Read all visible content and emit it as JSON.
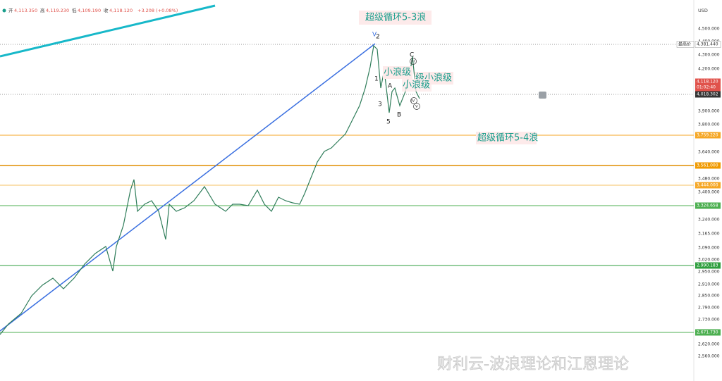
{
  "toolbar": {
    "open_label": "开",
    "open": "4,113.350",
    "high_label": "高",
    "high": "4,119.230",
    "low_label": "低",
    "low": "4,109.190",
    "close_label": "收",
    "close": "4,118.120",
    "change": "+3.208 (+0.08%)"
  },
  "currency": "USD",
  "price_axis": [
    "4,500.000",
    "4,400.000",
    "4,300.000",
    "4,200.000",
    "3,900.000",
    "3,800.000",
    "3,640.000",
    "3,480.000",
    "3,400.000",
    "3,240.000",
    "3,165.000",
    "3,090.000",
    "3,020.000",
    "2,950.000",
    "2,910.000",
    "2,850.000",
    "2,790.000",
    "2,730.000",
    "2,620.000",
    "2,560.000"
  ],
  "high_tag": "最高价",
  "badges": [
    {
      "label": "4,381.440"
    },
    {
      "label": "4,118.120",
      "timer": "01:02:40"
    },
    {
      "label": "4,018.302"
    },
    {
      "label": "3,759.220"
    },
    {
      "label": "3,561.000"
    },
    {
      "label": "3,444.000"
    },
    {
      "label": "3,324.658"
    },
    {
      "label": "2,990.183"
    },
    {
      "label": "2,671.730"
    }
  ],
  "annotations": [
    "超级循环5-3浪",
    "超级循环5-4浪",
    "小浪级",
    "级小浪级",
    "小浪级"
  ],
  "wave_labels": [
    "V",
    "2",
    "1",
    "3",
    "5",
    "A",
    "B",
    "C",
    "iii",
    "iv",
    "v"
  ],
  "watermark": "财利云-波浪理论和江恩理论"
}
